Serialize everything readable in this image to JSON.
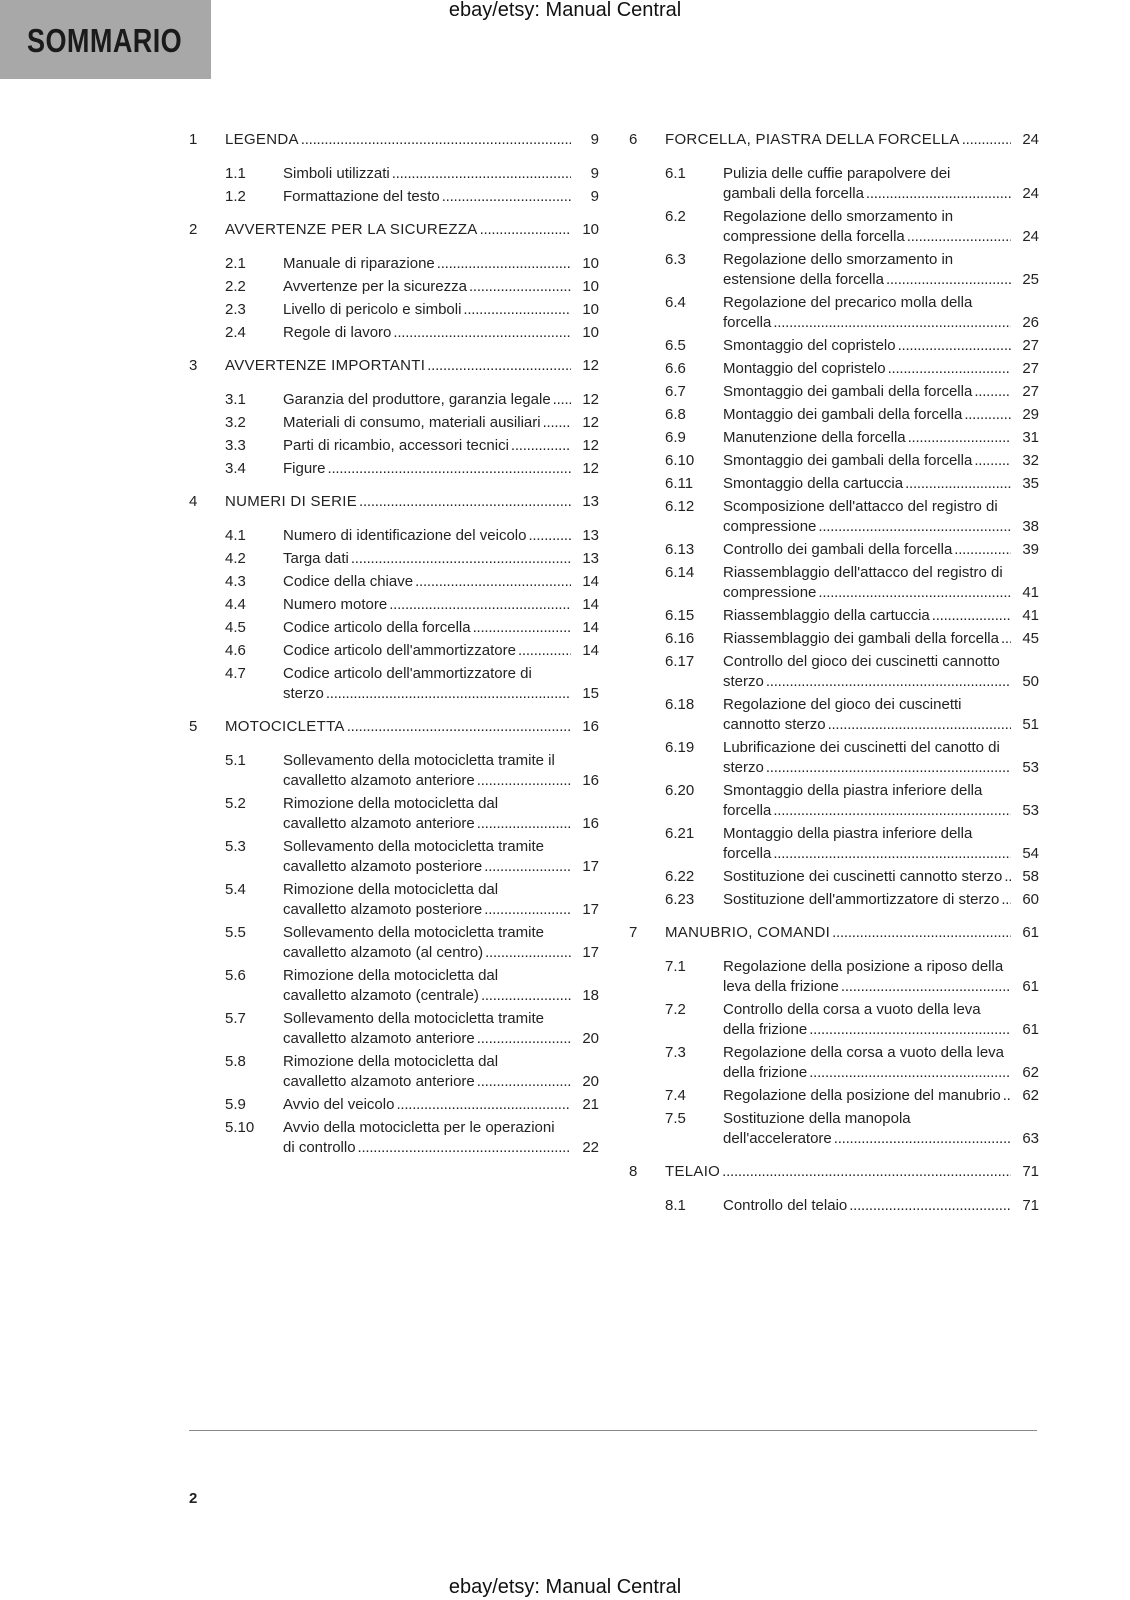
{
  "header": {
    "section_title": "SOMMARIO",
    "watermark_top": "ebay/etsy: Manual Central"
  },
  "footer": {
    "watermark_bottom": "ebay/etsy: Manual Central",
    "page_number": "2"
  },
  "columns": [
    {
      "chapters": [
        {
          "num": "1",
          "title": "LEGENDA",
          "page": "9",
          "items": [
            {
              "num": "1.1",
              "title": "Simboli utilizzati",
              "page": "9"
            },
            {
              "num": "1.2",
              "title": "Formattazione del testo",
              "page": "9"
            }
          ]
        },
        {
          "num": "2",
          "title": "AVVERTENZE PER LA SICUREZZA",
          "page": "10",
          "items": [
            {
              "num": "2.1",
              "title": "Manuale di riparazione",
              "page": "10"
            },
            {
              "num": "2.2",
              "title": "Avvertenze per la sicurezza",
              "page": "10"
            },
            {
              "num": "2.3",
              "title": "Livello di pericolo e simboli",
              "page": "10"
            },
            {
              "num": "2.4",
              "title": "Regole di lavoro",
              "page": "10"
            }
          ]
        },
        {
          "num": "3",
          "title": "AVVERTENZE IMPORTANTI",
          "page": "12",
          "items": [
            {
              "num": "3.1",
              "title": "Garanzia del produttore, garanzia legale",
              "page": "12"
            },
            {
              "num": "3.2",
              "title": "Materiali di consumo, materiali ausiliari",
              "page": "12"
            },
            {
              "num": "3.3",
              "title": "Parti di ricambio, accessori tecnici",
              "page": "12"
            },
            {
              "num": "3.4",
              "title": "Figure",
              "page": "12"
            }
          ]
        },
        {
          "num": "4",
          "title": "NUMERI DI SERIE",
          "page": "13",
          "items": [
            {
              "num": "4.1",
              "title": "Numero di identificazione del veicolo",
              "page": "13"
            },
            {
              "num": "4.2",
              "title": "Targa dati",
              "page": "13"
            },
            {
              "num": "4.3",
              "title": "Codice della chiave",
              "page": "14"
            },
            {
              "num": "4.4",
              "title": "Numero motore",
              "page": "14"
            },
            {
              "num": "4.5",
              "title": "Codice articolo della forcella",
              "page": "14"
            },
            {
              "num": "4.6",
              "title": "Codice articolo dell'ammortizzatore",
              "page": "14"
            },
            {
              "num": "4.7",
              "title": "Codice articolo dell'ammortizzatore di sterzo",
              "page": "15"
            }
          ]
        },
        {
          "num": "5",
          "title": "MOTOCICLETTA",
          "page": "16",
          "items": [
            {
              "num": "5.1",
              "title": "Sollevamento della motocicletta tramite il cavalletto alzamoto anteriore",
              "page": "16"
            },
            {
              "num": "5.2",
              "title": "Rimozione della motocicletta dal cavalletto alzamoto anteriore",
              "page": "16"
            },
            {
              "num": "5.3",
              "title": "Sollevamento della motocicletta tramite cavalletto alzamoto posteriore",
              "page": "17"
            },
            {
              "num": "5.4",
              "title": "Rimozione della motocicletta dal cavalletto alzamoto posteriore",
              "page": "17"
            },
            {
              "num": "5.5",
              "title": "Sollevamento della motocicletta tramite cavalletto alzamoto (al centro)",
              "page": "17"
            },
            {
              "num": "5.6",
              "title": "Rimozione della motocicletta dal cavalletto alzamoto (centrale)",
              "page": "18"
            },
            {
              "num": "5.7",
              "title": "Sollevamento della motocicletta tramite cavalletto alzamoto anteriore",
              "page": "20"
            },
            {
              "num": "5.8",
              "title": "Rimozione della motocicletta dal cavalletto alzamoto anteriore",
              "page": "20"
            },
            {
              "num": "5.9",
              "title": "Avvio del veicolo",
              "page": "21"
            },
            {
              "num": "5.10",
              "title": "Avvio della motocicletta per le operazioni di controllo",
              "page": "22"
            }
          ]
        }
      ]
    },
    {
      "chapters": [
        {
          "num": "6",
          "title": "FORCELLA, PIASTRA DELLA FORCELLA",
          "page": "24",
          "items": [
            {
              "num": "6.1",
              "title": "Pulizia delle cuffie parapolvere dei gambali della forcella",
              "page": "24"
            },
            {
              "num": "6.2",
              "title": "Regolazione dello smorzamento in compressione della forcella",
              "page": "24"
            },
            {
              "num": "6.3",
              "title": "Regolazione dello smorzamento in estensione della forcella",
              "page": "25"
            },
            {
              "num": "6.4",
              "title": "Regolazione del precarico molla della forcella",
              "page": "26"
            },
            {
              "num": "6.5",
              "title": "Smontaggio del copristelo",
              "page": "27"
            },
            {
              "num": "6.6",
              "title": "Montaggio del copristelo",
              "page": "27"
            },
            {
              "num": "6.7",
              "title": "Smontaggio dei gambali della forcella",
              "page": "27"
            },
            {
              "num": "6.8",
              "title": "Montaggio dei gambali della forcella",
              "page": "29"
            },
            {
              "num": "6.9",
              "title": "Manutenzione della forcella",
              "page": "31"
            },
            {
              "num": "6.10",
              "title": "Smontaggio dei gambali della forcella",
              "page": "32"
            },
            {
              "num": "6.11",
              "title": "Smontaggio della cartuccia",
              "page": "35"
            },
            {
              "num": "6.12",
              "title": "Scomposizione dell'attacco del registro di compressione",
              "page": "38"
            },
            {
              "num": "6.13",
              "title": "Controllo dei gambali della forcella",
              "page": "39"
            },
            {
              "num": "6.14",
              "title": "Riassemblaggio dell'attacco del registro di compressione",
              "page": "41"
            },
            {
              "num": "6.15",
              "title": "Riassemblaggio della cartuccia",
              "page": "41"
            },
            {
              "num": "6.16",
              "title": "Riassemblaggio dei gambali della forcella",
              "page": "45"
            },
            {
              "num": "6.17",
              "title": "Controllo del gioco dei cuscinetti cannotto sterzo",
              "page": "50"
            },
            {
              "num": "6.18",
              "title": "Regolazione del gioco dei cuscinetti cannotto sterzo",
              "page": "51"
            },
            {
              "num": "6.19",
              "title": "Lubrificazione dei cuscinetti del canotto di sterzo",
              "page": "53"
            },
            {
              "num": "6.20",
              "title": "Smontaggio della piastra inferiore della forcella",
              "page": "53"
            },
            {
              "num": "6.21",
              "title": "Montaggio della piastra inferiore della forcella",
              "page": "54"
            },
            {
              "num": "6.22",
              "title": "Sostituzione dei cuscinetti cannotto sterzo",
              "page": "58"
            },
            {
              "num": "6.23",
              "title": "Sostituzione dell'ammortizzatore di sterzo",
              "page": "60"
            }
          ]
        },
        {
          "num": "7",
          "title": "MANUBRIO, COMANDI",
          "page": "61",
          "items": [
            {
              "num": "7.1",
              "title": "Regolazione della posizione a riposo della leva della frizione",
              "page": "61"
            },
            {
              "num": "7.2",
              "title": "Controllo della corsa a vuoto della leva della frizione",
              "page": "61"
            },
            {
              "num": "7.3",
              "title": "Regolazione della corsa a vuoto della leva della frizione",
              "page": "62"
            },
            {
              "num": "7.4",
              "title": "Regolazione della posizione del manubrio",
              "page": "62"
            },
            {
              "num": "7.5",
              "title": "Sostituzione della manopola dell'acceleratore",
              "page": "63"
            }
          ]
        },
        {
          "num": "8",
          "title": "TELAIO",
          "page": "71",
          "items": [
            {
              "num": "8.1",
              "title": "Controllo del telaio",
              "page": "71"
            }
          ]
        }
      ]
    }
  ]
}
